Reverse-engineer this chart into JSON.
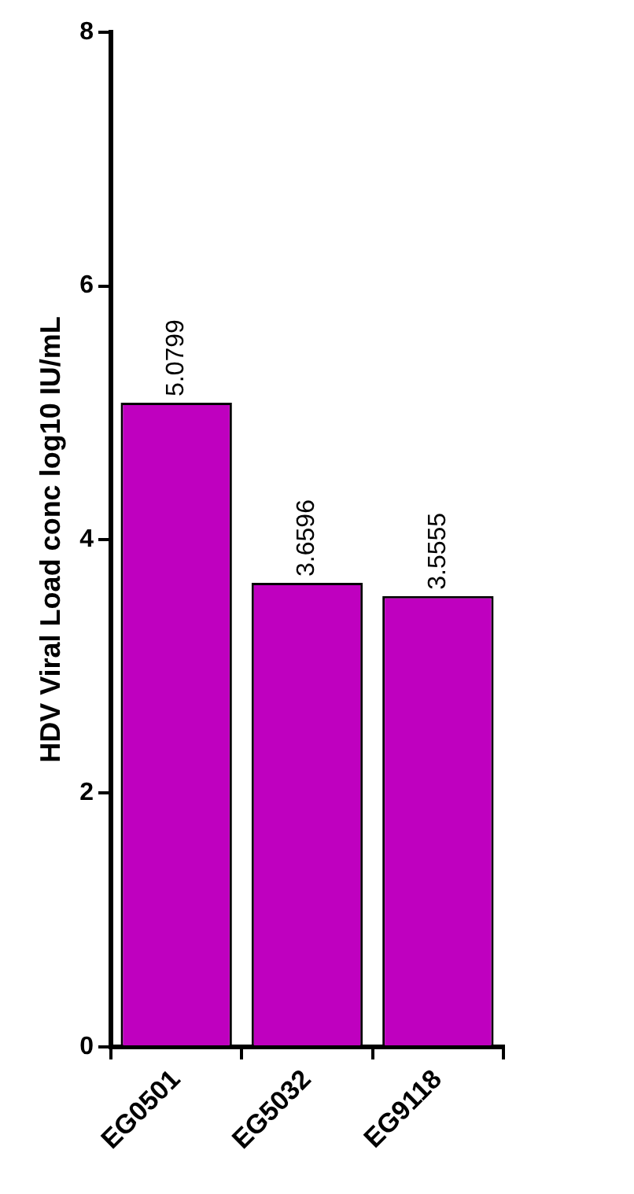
{
  "chart_data": {
    "type": "bar",
    "ylabel": "HDV Viral Load conc log10 IU/mL",
    "categories": [
      "EG0501",
      "EG5032",
      "EG9118"
    ],
    "values": [
      5.0799,
      3.6596,
      3.5555
    ],
    "color": "#bf00bf",
    "ylim": [
      0,
      8
    ],
    "yticks": [
      0,
      2,
      4,
      6,
      8
    ],
    "data_labels": true,
    "grid": false,
    "legend": false
  }
}
